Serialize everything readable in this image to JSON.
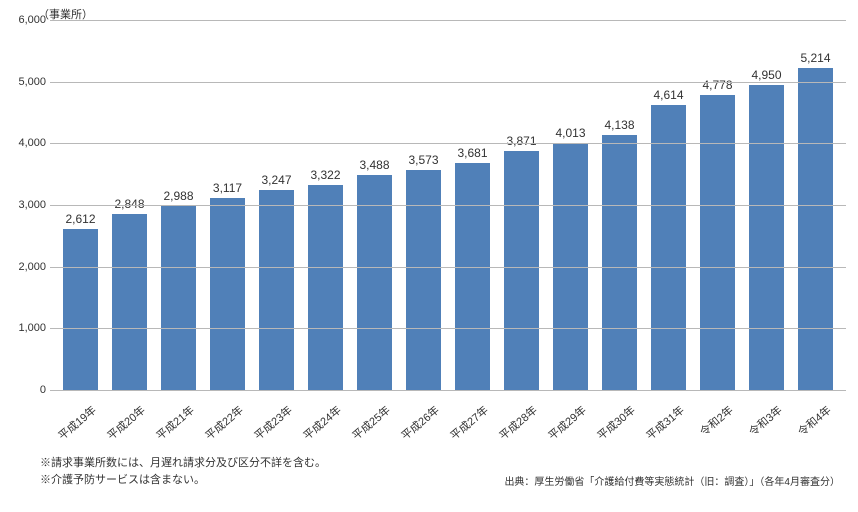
{
  "chart": {
    "type": "bar",
    "y_unit_label": "（事業所）",
    "ylim": [
      0,
      6000
    ],
    "ytick_step": 1000,
    "yticks": [
      0,
      1000,
      2000,
      3000,
      4000,
      5000,
      6000
    ],
    "ytick_labels": [
      "0",
      "1,000",
      "2,000",
      "3,000",
      "4,000",
      "5,000",
      "6,000"
    ],
    "categories": [
      "平成19年",
      "平成20年",
      "平成21年",
      "平成22年",
      "平成23年",
      "平成24年",
      "平成25年",
      "平成26年",
      "平成27年",
      "平成28年",
      "平成29年",
      "平成30年",
      "平成31年",
      "令和2年",
      "令和3年",
      "令和4年"
    ],
    "values": [
      2612,
      2848,
      2988,
      3117,
      3247,
      3322,
      3488,
      3573,
      3681,
      3871,
      4013,
      4138,
      4614,
      4778,
      4950,
      5214
    ],
    "value_labels": [
      "2,612",
      "2,848",
      "2,988",
      "3,117",
      "3,247",
      "3,322",
      "3,488",
      "3,573",
      "3,681",
      "3,871",
      "4,013",
      "4,138",
      "4,614",
      "4,778",
      "4,950",
      "5,214"
    ],
    "bar_color": "#5080b8",
    "grid_color": "#b8b8b8",
    "text_color": "#323232",
    "background_color": "#ffffff",
    "bar_width_ratio": 0.72,
    "label_fontsize": 11,
    "value_fontsize": 12,
    "x_label_rotation_deg": -40
  },
  "footnote1": "※請求事業所数には、月遅れ請求分及び区分不詳を含む。",
  "footnote2": "※介護予防サービスは含まない。",
  "source": "出典：厚生労働省「介護給付費等実態統計（旧：調査）」（各年4月審査分）"
}
